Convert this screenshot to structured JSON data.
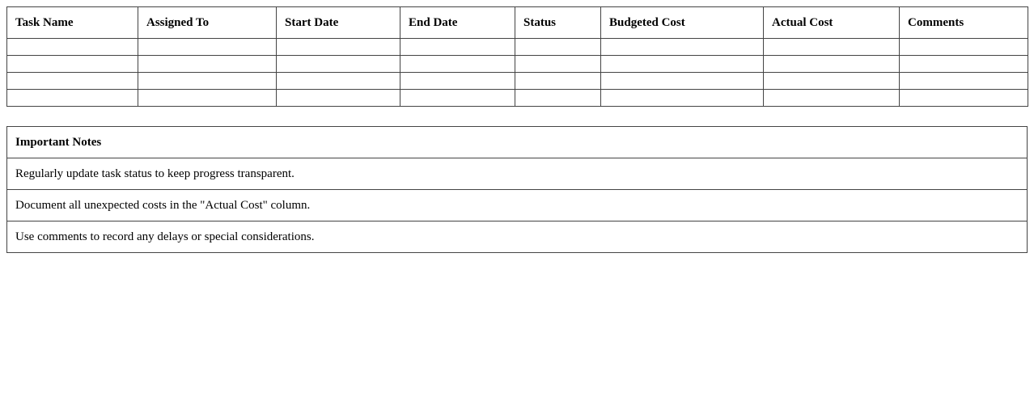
{
  "task_table": {
    "headers": [
      "Task Name",
      "Assigned To",
      "Start Date",
      "End Date",
      "Status",
      "Budgeted Cost",
      "Actual Cost",
      "Comments"
    ],
    "rows": [
      [
        "",
        "",
        "",
        "",
        "",
        "",
        "",
        ""
      ],
      [
        "",
        "",
        "",
        "",
        "",
        "",
        "",
        ""
      ],
      [
        "",
        "",
        "",
        "",
        "",
        "",
        "",
        ""
      ],
      [
        "",
        "",
        "",
        "",
        "",
        "",
        "",
        ""
      ]
    ]
  },
  "notes": {
    "title": "Important Notes",
    "items": [
      "Regularly update task status to keep progress transparent.",
      "Document all unexpected costs in the \"Actual Cost\" column.",
      "Use comments to record any delays or special considerations."
    ]
  }
}
